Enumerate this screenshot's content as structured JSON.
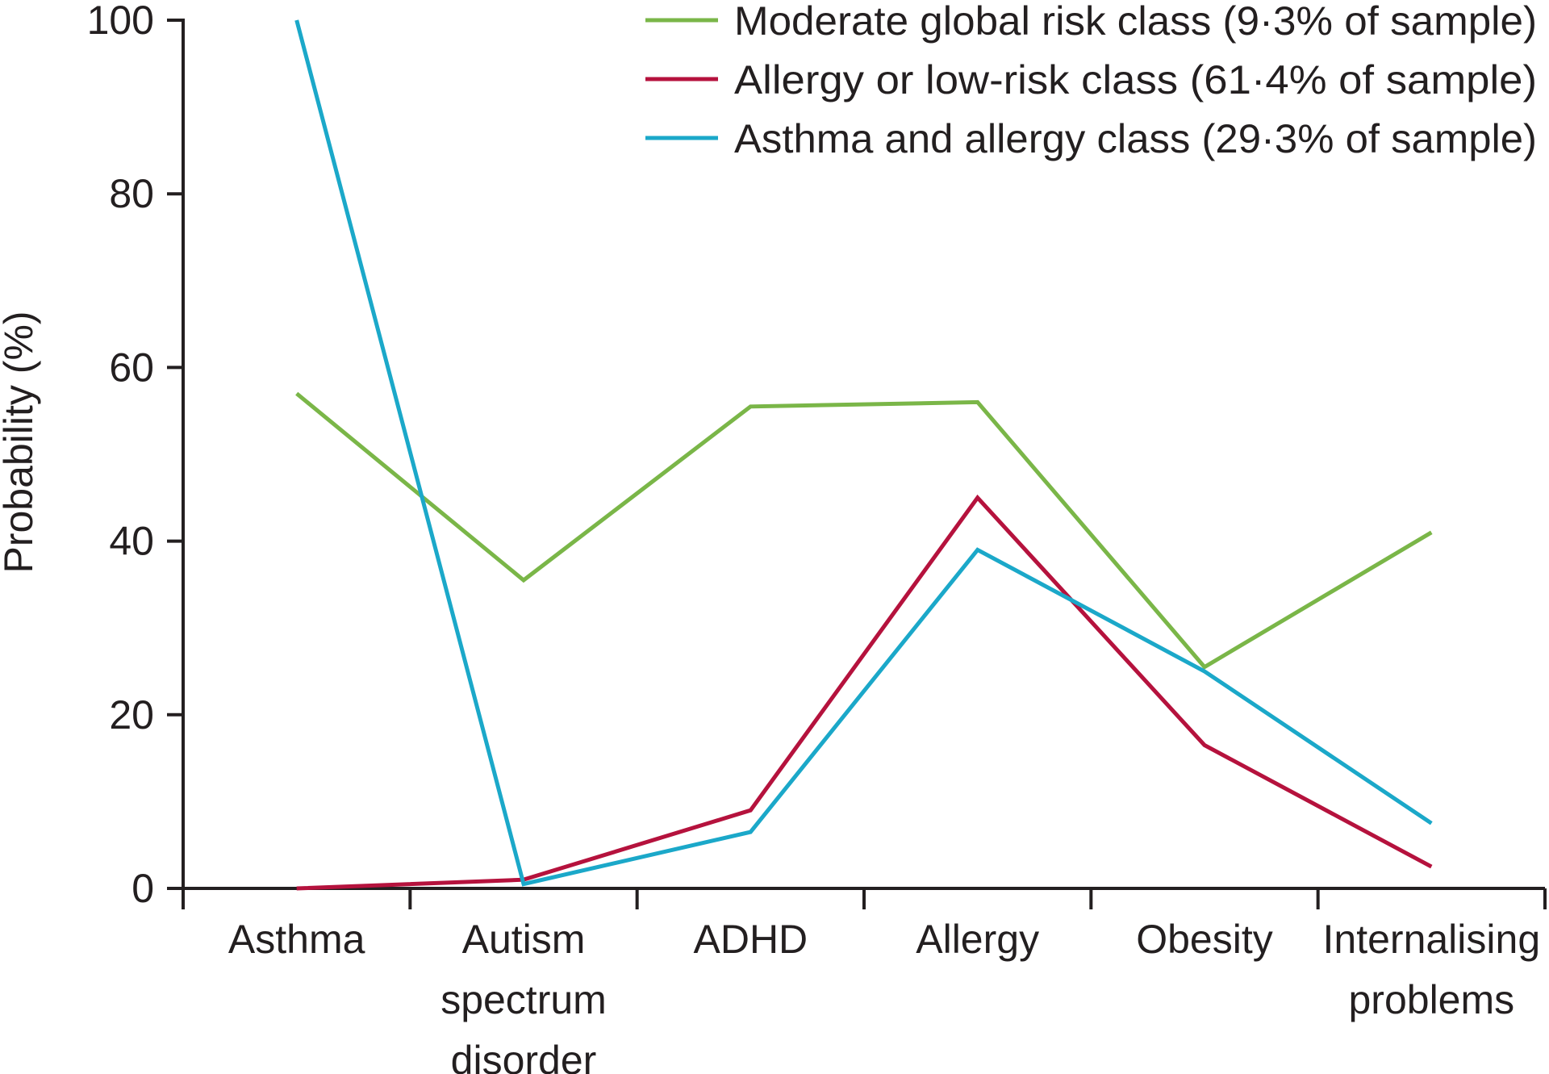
{
  "chart_data": {
    "type": "line",
    "title": "",
    "xlabel": "",
    "ylabel": "Probability (%)",
    "ylim": [
      0,
      100
    ],
    "yticks": [
      0,
      20,
      40,
      60,
      80,
      100
    ],
    "grid": false,
    "legend_position": "top-right",
    "categories": [
      [
        "Asthma"
      ],
      [
        "Autism",
        "spectrum",
        "disorder"
      ],
      [
        "ADHD"
      ],
      [
        "Allergy"
      ],
      [
        "Obesity"
      ],
      [
        "Internalising",
        "problems"
      ]
    ],
    "series": [
      {
        "name": "Moderate global risk class (9·3% of sample)",
        "color": "#7ab648",
        "values": [
          57,
          35.5,
          55.5,
          56,
          25.5,
          41
        ]
      },
      {
        "name": "Allergy or low-risk class (61·4% of sample)",
        "color": "#b5123d",
        "values": [
          0,
          1,
          9,
          45,
          16.5,
          2.5
        ]
      },
      {
        "name": "Asthma and allergy class (29·3% of sample)",
        "color": "#1ba8c9",
        "values": [
          100,
          0.5,
          6.5,
          39,
          25,
          7.5
        ]
      }
    ]
  }
}
